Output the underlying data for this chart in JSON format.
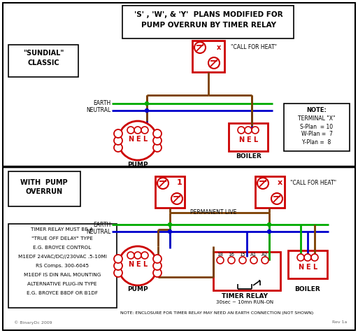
{
  "title_line1": "'S' , 'W', & 'Y'  PLANS MODIFIED FOR",
  "title_line2": "PUMP OVERRUN BY TIMER RELAY",
  "bg_color": "#ffffff",
  "red": "#cc0000",
  "green": "#00aa00",
  "blue": "#0000cc",
  "brown": "#7B3F00",
  "black": "#000000",
  "gray": "#666666",
  "sundial_label1": "\"SUNDIAL\"",
  "sundial_label2": "CLASSIC",
  "with_pump1": "WITH  PUMP",
  "with_pump2": "OVERRUN",
  "note_title": "NOTE:",
  "note_line1": "TERMINAL \"X\"",
  "note_line2": "S-Plan  = 10",
  "note_line3": "W-Plan =  7",
  "note_line4": "Y-Plan =  8",
  "timer_note_lines": [
    "TIMER RELAY MUST BE A",
    "\"TRUE OFF DELAY\" TYPE",
    "E.G. BROYCE CONTROL",
    "M1EDF 24VAC/DC//230VAC .5-10MI",
    "RS Comps. 300-6045",
    "M1EDF IS DIN RAIL MOUNTING",
    "ALTERNATIVE PLUG-IN TYPE",
    "E.G. BROYCE B8DF OR B1DF"
  ],
  "bottom_note": "NOTE: ENCLOSURE FOR TIMER RELAY MAY NEED AN EARTH CONNECTION (NOT SHOWN)",
  "copyright": "© BinaryDc 2009",
  "rev": "Rev 1a"
}
